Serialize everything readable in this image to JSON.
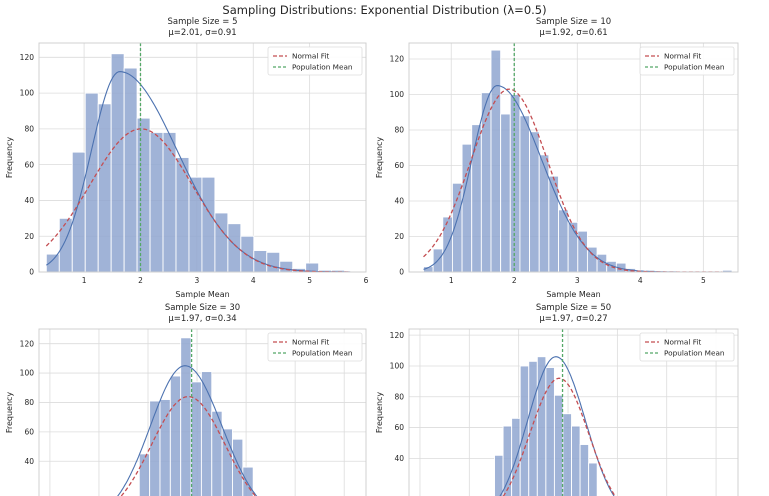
{
  "figure_title": "Sampling Distributions: Exponential Distribution (λ=0.5)",
  "colors": {
    "bar_fill": "#8fa6d0",
    "kde_line": "#4c72b0",
    "normal_fit": "#c44e52",
    "population_mean": "#55a868",
    "grid": "#dcdcdc",
    "spine": "#cccccc"
  },
  "chart_data": [
    {
      "type": "bar",
      "title": "Sample Size = 5",
      "subtitle": "μ=2.01, σ=0.91",
      "xlabel": "Sample Mean",
      "ylabel": "Frequency",
      "xlim": [
        0.2,
        6.0
      ],
      "ylim": [
        0,
        128
      ],
      "xticks": [
        1,
        2,
        3,
        4,
        5,
        6
      ],
      "yticks": [
        0,
        20,
        40,
        60,
        80,
        100,
        120
      ],
      "bin_start": 0.33,
      "bin_width": 0.23,
      "values": [
        10,
        30,
        67,
        100,
        94,
        122,
        114,
        86,
        78,
        78,
        64,
        53,
        53,
        33,
        27,
        20,
        12,
        11,
        6,
        2,
        5,
        1,
        1
      ],
      "kde": {
        "peak_x": 1.63,
        "peak_y": 112,
        "left_sd": 0.5,
        "right_sd": 1.02,
        "start_x": 0.33,
        "end_x": 5.72
      },
      "normal": {
        "mean": 2.01,
        "sd": 0.91,
        "peak_y": 80,
        "start_x": 0.33,
        "end_x": 5.72
      },
      "population_mean": 2.0,
      "legend": {
        "position": "top-right",
        "entries": [
          "Normal Fit",
          "Population Mean"
        ]
      }
    },
    {
      "type": "bar",
      "title": "Sample Size = 10",
      "subtitle": "μ=1.92, σ=0.61",
      "xlabel": "Sample Mean",
      "ylabel": "Frequency",
      "xlim": [
        0.33,
        5.55
      ],
      "ylim": [
        0,
        129
      ],
      "xticks": [
        1,
        2,
        3,
        4,
        5
      ],
      "yticks": [
        0,
        20,
        40,
        60,
        80,
        100,
        120
      ],
      "bin_start": 0.56,
      "bin_width": 0.153,
      "values": [
        3,
        13,
        31,
        50,
        72,
        83,
        101,
        125,
        89,
        100,
        88,
        79,
        66,
        54,
        35,
        28,
        23,
        14,
        10,
        6,
        5,
        2,
        1,
        1,
        0,
        0,
        0,
        0,
        0,
        0,
        0,
        1
      ],
      "kde": {
        "peak_x": 1.73,
        "peak_y": 105,
        "left_sd": 0.4,
        "right_sd": 0.7,
        "start_x": 0.56,
        "end_x": 5.3
      },
      "normal": {
        "mean": 1.92,
        "sd": 0.61,
        "peak_y": 103,
        "start_x": 0.56,
        "end_x": 5.3
      },
      "population_mean": 2.0,
      "legend": {
        "position": "top-right",
        "entries": [
          "Normal Fit",
          "Population Mean"
        ]
      }
    },
    {
      "type": "bar",
      "title": "Sample Size = 30",
      "subtitle": "μ=1.97, σ=0.34",
      "xlabel": "",
      "ylabel": "Frequency",
      "xlim": [
        0.6,
        3.6
      ],
      "ylim": [
        0,
        130
      ],
      "xticks": [],
      "yticks": [
        40,
        60,
        80,
        100,
        120
      ],
      "bin_start": 1.52,
      "bin_width": 0.095,
      "values": [
        45,
        81,
        82,
        98,
        124,
        94,
        101,
        74,
        62,
        55,
        36
      ],
      "kde": {
        "peak_x": 1.94,
        "peak_y": 105,
        "left_sd": 0.32,
        "right_sd": 0.34,
        "start_x": 1.0,
        "end_x": 3.0
      },
      "normal": {
        "mean": 1.97,
        "sd": 0.34,
        "peak_y": 84,
        "start_x": 1.0,
        "end_x": 3.0
      },
      "population_mean": 2.0,
      "legend": {
        "position": "top-right",
        "entries": [
          "Normal Fit",
          "Population Mean"
        ]
      }
    },
    {
      "type": "bar",
      "title": "Sample Size = 50",
      "subtitle": "μ=1.97, σ=0.27",
      "xlabel": "",
      "ylabel": "Frequency",
      "xlim": [
        0.6,
        3.6
      ],
      "ylim": [
        0,
        124
      ],
      "xticks": [],
      "yticks": [
        40,
        60,
        80,
        100,
        120
      ],
      "bin_start": 1.38,
      "bin_width": 0.078,
      "values": [
        42,
        61,
        66,
        100,
        103,
        106,
        99,
        81,
        69,
        61,
        49,
        37
      ],
      "kde": {
        "peak_x": 1.94,
        "peak_y": 106,
        "left_sd": 0.26,
        "right_sd": 0.27,
        "start_x": 1.0,
        "end_x": 3.0
      },
      "normal": {
        "mean": 1.97,
        "sd": 0.27,
        "peak_y": 92,
        "start_x": 1.0,
        "end_x": 3.0
      },
      "population_mean": 2.0,
      "legend": {
        "position": "top-right",
        "entries": [
          "Normal Fit",
          "Population Mean"
        ]
      }
    }
  ]
}
